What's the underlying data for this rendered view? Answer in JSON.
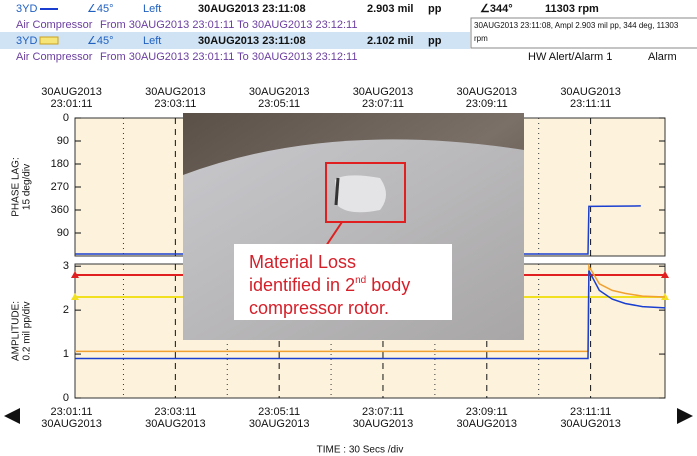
{
  "header": {
    "row1": {
      "icon": "3YD",
      "angle": "∠45°",
      "side": "Left",
      "time": "30AUG2013 23:11:08",
      "ampl": "2.903 mil",
      "unit": "pp",
      "phase": "∠344°",
      "speed": "11303 rpm"
    },
    "row2": {
      "machine": "Air Compressor",
      "range": "From 30AUG2013 23:01:11 To 30AUG2013 23:12:11"
    },
    "row3": {
      "icon": "3YD",
      "angle": "∠45°",
      "side": "Left",
      "time": "30AUG2013 23:11:08",
      "ampl": "2.102 mil",
      "unit": "pp"
    },
    "row4": {
      "machine": "Air Compressor",
      "range": "From 30AUG2013 23:01:11 To 30AUG2013 23:12:11",
      "status": "HW Alert/Alarm 1",
      "level": "Alarm"
    },
    "tooltip": [
      "30AUG2013 23:11:08, Ampl 2.903 mil  pp, 344 deg, 11303",
      "rpm"
    ]
  },
  "annotation": {
    "line1": "Material Loss",
    "line2": "identified in 2",
    "sup": "nd",
    "line2b": " body",
    "line3": "compressor rotor."
  },
  "x_axis": {
    "label": "TIME : 30 Secs /div",
    "xlim": [
      4,
      686
    ],
    "xticks": [
      {
        "value": 0,
        "label": "23:01:11"
      },
      {
        "value": 120,
        "label": "23:03:11"
      },
      {
        "value": 240,
        "label": "23:05:11"
      },
      {
        "value": 360,
        "label": "23:07:11"
      },
      {
        "value": 480,
        "label": "23:09:11"
      },
      {
        "value": 600,
        "label": "23:11:11"
      }
    ],
    "dates": [
      "30AUG2013",
      "30AUG2013",
      "30AUG2013",
      "30AUG2013",
      "30AUG2013",
      "30AUG2013"
    ]
  },
  "chart_data": [
    {
      "type": "line",
      "ylabel": [
        "PHASE LAG:",
        "15 deg/div"
      ],
      "ylim": [
        0,
        540
      ],
      "inverted": true,
      "yticks": [
        0,
        90,
        180,
        270,
        360,
        {
          "value": 450,
          "label": "90"
        }
      ],
      "series": [
        {
          "color": "#1a3fd0",
          "x": [
            4,
            597,
            598,
            658
          ],
          "values": [
            532,
            532,
            346,
            344
          ]
        }
      ]
    },
    {
      "type": "line",
      "ylabel": [
        "AMPLITUDE:",
        "0.2 mil  pp/div"
      ],
      "ylim": [
        0,
        3.05
      ],
      "inverted": false,
      "yticks": [
        0,
        1,
        2,
        3
      ],
      "levels": [
        {
          "color": "#e02020",
          "value": 2.8
        },
        {
          "color": "#f0e020",
          "value": 2.3
        }
      ],
      "series": [
        {
          "color": "#f0a030",
          "x": [
            4,
            597,
            598,
            610,
            625,
            640,
            660,
            686
          ],
          "values": [
            1.06,
            1.06,
            3.0,
            2.6,
            2.45,
            2.38,
            2.32,
            2.3
          ]
        },
        {
          "color": "#1a3fd0",
          "x": [
            4,
            597,
            598,
            610,
            625,
            640,
            660,
            686
          ],
          "values": [
            0.9,
            0.9,
            2.9,
            2.45,
            2.25,
            2.15,
            2.08,
            2.05
          ]
        }
      ]
    }
  ]
}
